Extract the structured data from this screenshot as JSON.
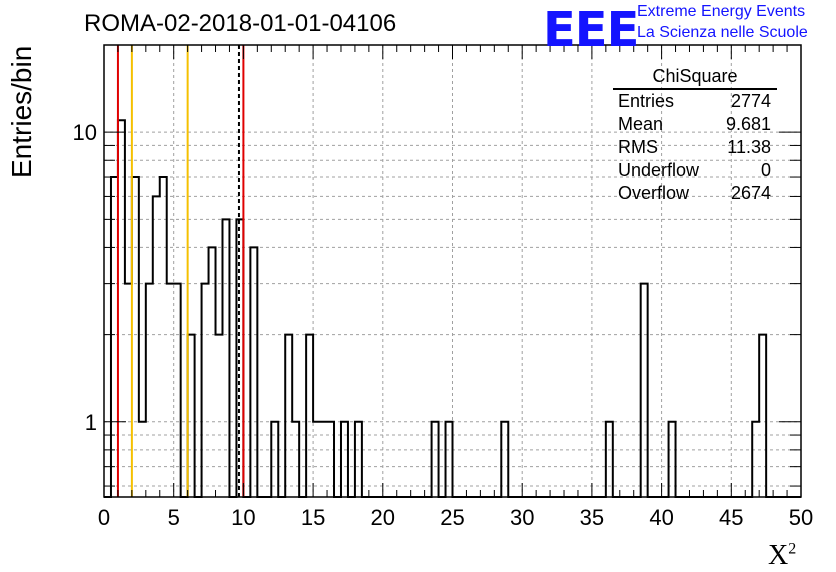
{
  "header": {
    "title": "ROMA-02-2018-01-01-04106",
    "logo_text": "EEE",
    "tagline_1": "Extreme Energy Events",
    "tagline_2": "La Scienza nelle Scuole"
  },
  "stats_box": {
    "name": "ChiSquare",
    "rows": [
      {
        "label": "Entries",
        "value": "2774"
      },
      {
        "label": "Mean",
        "value": "9.681"
      },
      {
        "label": "RMS",
        "value": "11.38"
      },
      {
        "label": "Underflow",
        "value": "0"
      },
      {
        "label": "Overflow",
        "value": "2674"
      }
    ]
  },
  "chart_data": {
    "type": "bar",
    "subtype": "step-histogram",
    "xlabel": "X",
    "xlabel_superscript": "2",
    "ylabel": "Entries/bin",
    "xlim": [
      0,
      50
    ],
    "ylim": [
      0.55,
      20
    ],
    "yscale": "log",
    "xticks": [
      "0",
      "5",
      "10",
      "15",
      "20",
      "25",
      "30",
      "35",
      "40",
      "45",
      "50"
    ],
    "yticks": [
      {
        "value": 1,
        "label": "1"
      },
      {
        "value": 10,
        "label": "10"
      }
    ],
    "grid": true,
    "bin_width": 0.5,
    "bin_edges": [
      0,
      0.5,
      1,
      1.5,
      2,
      2.5,
      3,
      3.5,
      4,
      4.5,
      5,
      5.5,
      6,
      6.5,
      7,
      7.5,
      8,
      8.5,
      9,
      9.5,
      10,
      10.5,
      11,
      11.5,
      12,
      12.5,
      13,
      13.5,
      14,
      14.5,
      15,
      15.5,
      16,
      16.5,
      17,
      17.5,
      18,
      18.5,
      19,
      19.5,
      20,
      20.5,
      21,
      21.5,
      22,
      22.5,
      23,
      23.5,
      24,
      24.5,
      25,
      25.5,
      26,
      26.5,
      27,
      27.5,
      28,
      28.5,
      29,
      29.5,
      30,
      30.5,
      31,
      31.5,
      32,
      32.5,
      33,
      33.5,
      34,
      34.5,
      35,
      35.5,
      36,
      36.5,
      37,
      37.5,
      38,
      38.5,
      39,
      39.5,
      40,
      40.5,
      41,
      41.5,
      42,
      42.5,
      43,
      43.5,
      44,
      44.5,
      45,
      45.5,
      46,
      46.5,
      47,
      47.5,
      48,
      48.5,
      49,
      49.5,
      50
    ],
    "counts": [
      0,
      7,
      11,
      3,
      7,
      1,
      3,
      6,
      7,
      3,
      3,
      0,
      2,
      0,
      3,
      4,
      2,
      5,
      0,
      5,
      0,
      4,
      0,
      0,
      1,
      0,
      2,
      1,
      0,
      2,
      1,
      1,
      1,
      0,
      1,
      0,
      1,
      0,
      0,
      0,
      0,
      0,
      0,
      0,
      0,
      0,
      0,
      1,
      0,
      1,
      0,
      0,
      0,
      0,
      0,
      0,
      0,
      1,
      0,
      0,
      0,
      0,
      0,
      0,
      0,
      0,
      0,
      0,
      0,
      0,
      0,
      0,
      1,
      0,
      0,
      0,
      0,
      3,
      0,
      0,
      0,
      1,
      0,
      0,
      0,
      0,
      0,
      0,
      0,
      0,
      0,
      0,
      0,
      1,
      2,
      0,
      0,
      0,
      0,
      0
    ],
    "vertical_lines": [
      {
        "x": 1.0,
        "color": "#e00000",
        "style": "solid"
      },
      {
        "x": 2.0,
        "color": "#f5c000",
        "style": "solid"
      },
      {
        "x": 6.0,
        "color": "#f5c000",
        "style": "solid"
      },
      {
        "x": 9.681,
        "color": "#000000",
        "style": "dashed"
      },
      {
        "x": 10.0,
        "color": "#e00000",
        "style": "solid"
      }
    ]
  },
  "colors": {
    "logo": "#1414ff",
    "grid": "#a0a0a0"
  }
}
